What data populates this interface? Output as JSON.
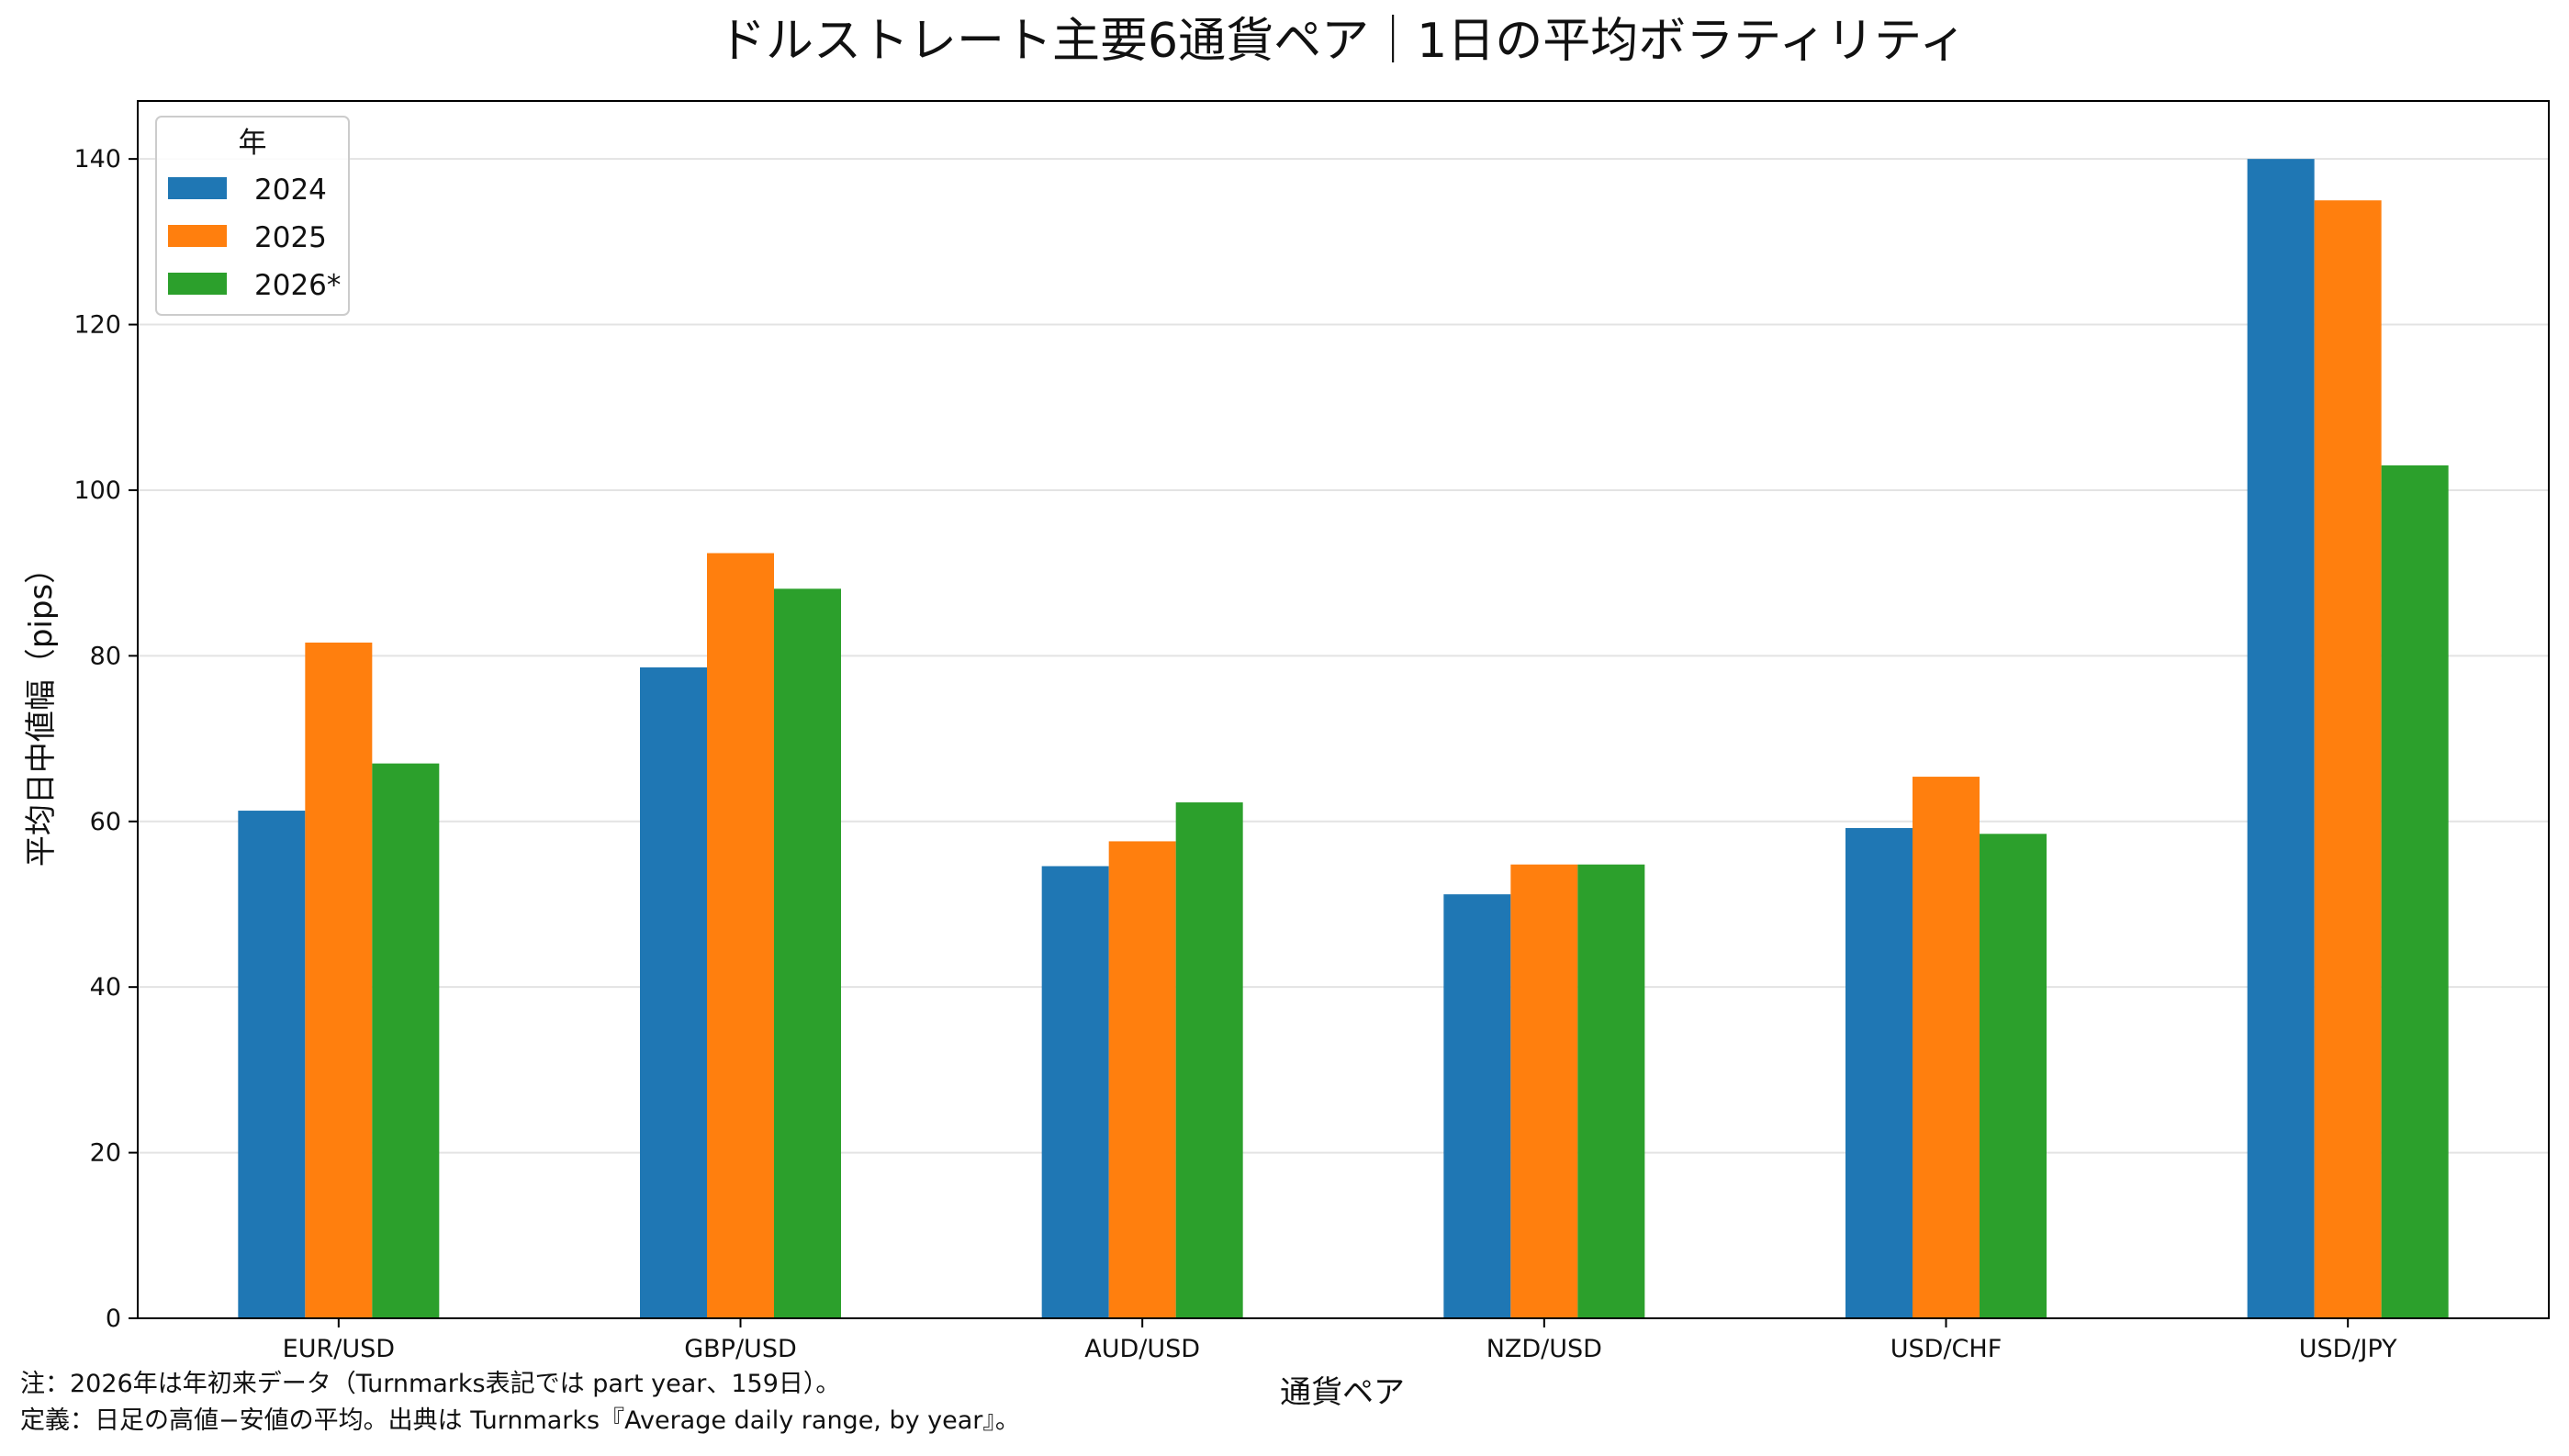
{
  "chart_data": {
    "type": "bar",
    "title": "ドルストレート主要6通貨ペア｜1日の平均ボラティリティ",
    "xlabel": "通貨ペア",
    "ylabel": "平均日中値幅（pips）",
    "categories": [
      "EUR/USD",
      "GBP/USD",
      "AUD/USD",
      "NZD/USD",
      "USD/CHF",
      "USD/JPY"
    ],
    "series": [
      {
        "name": "2024",
        "color": "#1f77b4",
        "values": [
          61.3,
          78.6,
          54.6,
          51.2,
          59.2,
          140.0
        ]
      },
      {
        "name": "2025",
        "color": "#ff7f0e",
        "values": [
          81.6,
          92.4,
          57.6,
          54.8,
          65.4,
          135.0
        ]
      },
      {
        "name": "2026*",
        "color": "#2ca02c",
        "values": [
          67.0,
          88.1,
          62.3,
          54.8,
          58.5,
          103.0
        ]
      }
    ],
    "ylim": [
      0,
      147
    ],
    "yticks": [
      0,
      20,
      40,
      60,
      80,
      100,
      120,
      140
    ],
    "grid": "horizontal",
    "legend": {
      "title": "年",
      "position": "top-left"
    }
  },
  "notes": [
    "注：2026年は年初来データ（Turnmarks表記では part year、159日）。",
    "定義：日足の高値−安値の平均。出典は Turnmarks『Average daily range, by year』。"
  ]
}
